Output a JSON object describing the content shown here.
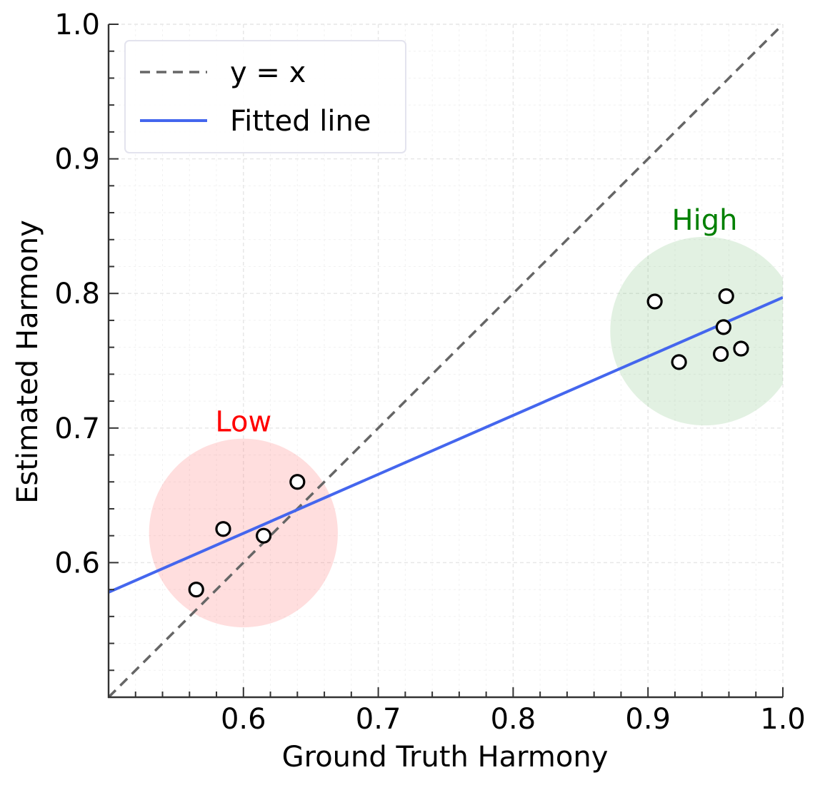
{
  "chart_data": {
    "type": "scatter",
    "title": "",
    "xlabel": "Ground Truth Harmony",
    "ylabel": "Estimated Harmony",
    "xlim": [
      0.5,
      1.0
    ],
    "ylim": [
      0.5,
      1.0
    ],
    "xticks": [
      0.6,
      0.7,
      0.8,
      0.9,
      1.0
    ],
    "yticks": [
      0.6,
      0.7,
      0.8,
      0.9,
      1.0
    ],
    "xtick_labels": [
      "0.6",
      "0.7",
      "0.8",
      "0.9",
      "1.0"
    ],
    "ytick_labels": [
      "0.6",
      "0.7",
      "0.8",
      "0.9",
      "1.0"
    ],
    "grid": true,
    "legend_position": "top-left",
    "series": [
      {
        "name": "Low",
        "x": [
          0.565,
          0.585,
          0.615,
          0.64
        ],
        "y": [
          0.58,
          0.625,
          0.62,
          0.66
        ]
      },
      {
        "name": "High",
        "x": [
          0.905,
          0.923,
          0.954,
          0.956,
          0.958,
          0.969
        ],
        "y": [
          0.794,
          0.749,
          0.755,
          0.775,
          0.798,
          0.759
        ]
      }
    ],
    "reference_line": {
      "label": "y = x",
      "x": [
        0.5,
        1.0
      ],
      "y": [
        0.5,
        1.0
      ],
      "color": "#666666",
      "style": "dashed"
    },
    "fitted_line": {
      "label": "Fitted line",
      "x": [
        0.5,
        1.0
      ],
      "y": [
        0.578,
        0.797
      ],
      "color": "#4466ee"
    },
    "clusters": [
      {
        "label": "Low",
        "center": [
          0.6,
          0.622
        ],
        "radius_x": 0.07,
        "color": "#ff6b6b",
        "label_color": "#ff0000"
      },
      {
        "label": "High",
        "center": [
          0.942,
          0.772
        ],
        "radius_x": 0.07,
        "color": "#7cbf7c",
        "label_color": "#008000"
      }
    ],
    "legend": [
      {
        "label": "y = x",
        "color": "#666666",
        "style": "dashed"
      },
      {
        "label": "Fitted line",
        "color": "#4466ee",
        "style": "solid"
      }
    ]
  }
}
